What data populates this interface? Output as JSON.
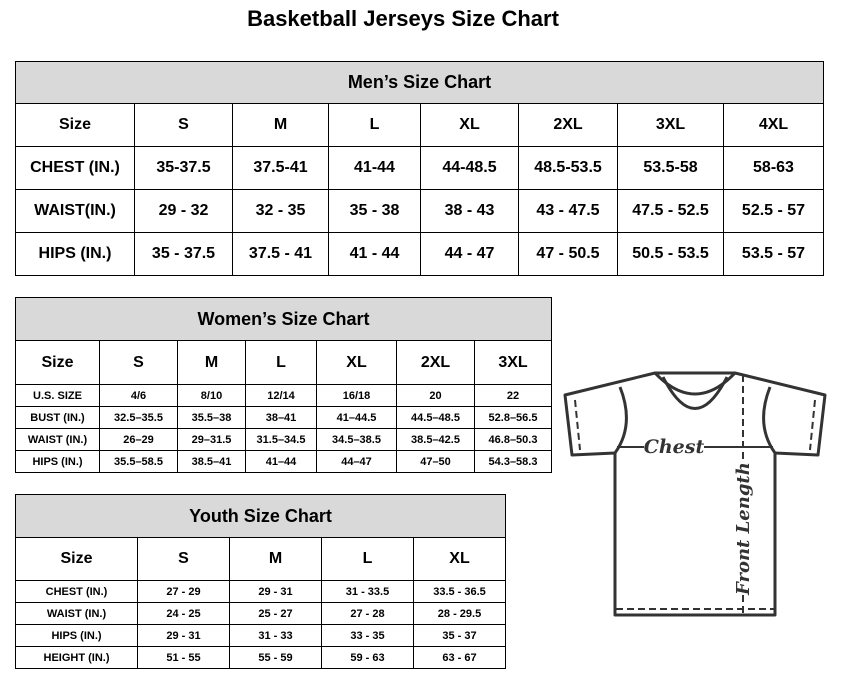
{
  "title": "Basketball Jerseys Size Chart",
  "tables": [
    {
      "id": "men",
      "title": "Men’s Size Chart",
      "header": [
        "Size",
        "S",
        "M",
        "L",
        "XL",
        "2XL",
        "3XL",
        "4XL"
      ],
      "rows": [
        [
          "CHEST (IN.)",
          "35-37.5",
          "37.5-41",
          "41-44",
          "44-48.5",
          "48.5-53.5",
          "53.5-58",
          "58-63"
        ],
        [
          "WAIST(IN.)",
          "29 - 32",
          "32 - 35",
          "35 - 38",
          "38 - 43",
          "43 - 47.5",
          "47.5 - 52.5",
          "52.5 - 57"
        ],
        [
          "HIPS (IN.)",
          "35 - 37.5",
          "37.5 - 41",
          "41 - 44",
          "44 - 47",
          "47 - 50.5",
          "50.5 - 53.5",
          "53.5 - 57"
        ]
      ]
    },
    {
      "id": "women",
      "title": "Women’s Size Chart",
      "header": [
        "Size",
        "S",
        "M",
        "L",
        "XL",
        "2XL",
        "3XL"
      ],
      "rows": [
        [
          "U.S. SIZE",
          "4/6",
          "8/10",
          "12/14",
          "16/18",
          "20",
          "22"
        ],
        [
          "BUST (IN.)",
          "32.5–35.5",
          "35.5–38",
          "38–41",
          "41–44.5",
          "44.5–48.5",
          "52.8–56.5"
        ],
        [
          "WAIST (IN.)",
          "26–29",
          "29–31.5",
          "31.5–34.5",
          "34.5–38.5",
          "38.5–42.5",
          "46.8–50.3"
        ],
        [
          "HIPS (IN.)",
          "35.5–58.5",
          "38.5–41",
          "41–44",
          "44–47",
          "47–50",
          "54.3–58.3"
        ]
      ]
    },
    {
      "id": "youth",
      "title": "Youth Size Chart",
      "header": [
        "Size",
        "S",
        "M",
        "L",
        "XL"
      ],
      "rows": [
        [
          "CHEST (IN.)",
          "27 - 29",
          "29 - 31",
          "31 - 33.5",
          "33.5 - 36.5"
        ],
        [
          "WAIST (IN.)",
          "24 - 25",
          "25 - 27",
          "27 - 28",
          "28 - 29.5"
        ],
        [
          "HIPS (IN.)",
          "29 - 31",
          "31 - 33",
          "33 - 35",
          "35 - 37"
        ],
        [
          "HEIGHT (IN.)",
          "51 - 55",
          "55 - 59",
          "59 - 63",
          "63 - 67"
        ]
      ]
    }
  ],
  "diagram": {
    "chest_label": "Chest",
    "length_label": "Front Length"
  }
}
